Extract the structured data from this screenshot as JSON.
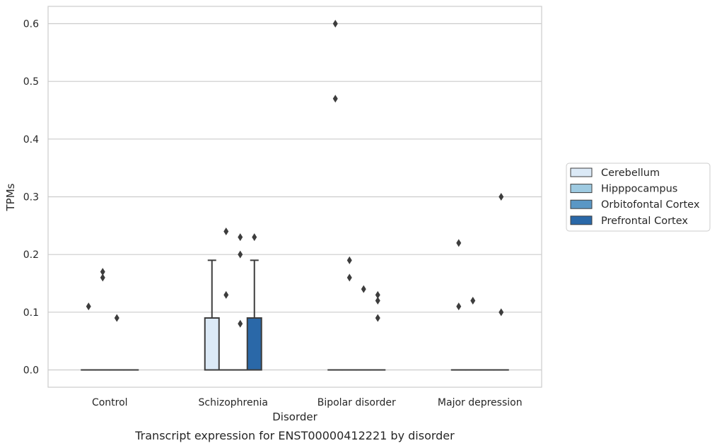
{
  "chart_data": {
    "type": "box",
    "caption": "Transcript expression for ENST00000412221 by disorder",
    "xlabel": "Disorder",
    "ylabel": "TPMs",
    "ylim": [
      -0.03,
      0.63
    ],
    "yticks": [
      "0.0",
      "0.1",
      "0.2",
      "0.3",
      "0.4",
      "0.5",
      "0.6"
    ],
    "grid": "horizontal",
    "legend_position": "right",
    "categories": [
      "Control",
      "Schizophrenia",
      "Bipolar disorder",
      "Major depression"
    ],
    "series": [
      {
        "name": "Cerebellum",
        "color": "#dbe9f6",
        "boxes": [
          {
            "q1": 0,
            "median": 0,
            "q3": 0,
            "whisker_low": 0,
            "whisker_high": 0,
            "outliers": [
              0.11
            ]
          },
          {
            "q1": 0,
            "median": 0,
            "q3": 0.09,
            "whisker_low": 0,
            "whisker_high": 0.19,
            "outliers": []
          },
          {
            "q1": 0,
            "median": 0,
            "q3": 0,
            "whisker_low": 0,
            "whisker_high": 0,
            "outliers": [
              0.6,
              0.47
            ]
          },
          {
            "q1": 0,
            "median": 0,
            "q3": 0,
            "whisker_low": 0,
            "whisker_high": 0,
            "outliers": [
              0.22,
              0.11
            ]
          }
        ]
      },
      {
        "name": "Hipppocampus",
        "color": "#9ecae1",
        "boxes": [
          {
            "q1": 0,
            "median": 0,
            "q3": 0,
            "whisker_low": 0,
            "whisker_high": 0,
            "outliers": [
              0.17,
              0.16
            ]
          },
          {
            "q1": 0,
            "median": 0,
            "q3": 0,
            "whisker_low": 0,
            "whisker_high": 0,
            "outliers": [
              0.24,
              0.13
            ]
          },
          {
            "q1": 0,
            "median": 0,
            "q3": 0,
            "whisker_low": 0,
            "whisker_high": 0,
            "outliers": [
              0.19,
              0.16
            ]
          },
          {
            "q1": 0,
            "median": 0,
            "q3": 0,
            "whisker_low": 0,
            "whisker_high": 0,
            "outliers": [
              0.12
            ]
          }
        ]
      },
      {
        "name": "Orbitofontal Cortex",
        "color": "#5a97c5",
        "boxes": [
          {
            "q1": 0,
            "median": 0,
            "q3": 0,
            "whisker_low": 0,
            "whisker_high": 0,
            "outliers": [
              0.09
            ]
          },
          {
            "q1": 0,
            "median": 0,
            "q3": 0,
            "whisker_low": 0,
            "whisker_high": 0,
            "outliers": [
              0.23,
              0.2,
              0.08
            ]
          },
          {
            "q1": 0,
            "median": 0,
            "q3": 0,
            "whisker_low": 0,
            "whisker_high": 0,
            "outliers": [
              0.14
            ]
          },
          {
            "q1": 0,
            "median": 0,
            "q3": 0,
            "whisker_low": 0,
            "whisker_high": 0,
            "outliers": []
          }
        ]
      },
      {
        "name": "Prefrontal Cortex",
        "color": "#2a68a8",
        "boxes": [
          {
            "q1": 0,
            "median": 0,
            "q3": 0,
            "whisker_low": 0,
            "whisker_high": 0,
            "outliers": []
          },
          {
            "q1": 0,
            "median": 0,
            "q3": 0.09,
            "whisker_low": 0,
            "whisker_high": 0.19,
            "outliers": [
              0.23
            ]
          },
          {
            "q1": 0,
            "median": 0,
            "q3": 0,
            "whisker_low": 0,
            "whisker_high": 0,
            "outliers": [
              0.13,
              0.12,
              0.09
            ]
          },
          {
            "q1": 0,
            "median": 0,
            "q3": 0,
            "whisker_low": 0,
            "whisker_high": 0,
            "outliers": [
              0.3,
              0.1
            ]
          }
        ]
      }
    ]
  }
}
